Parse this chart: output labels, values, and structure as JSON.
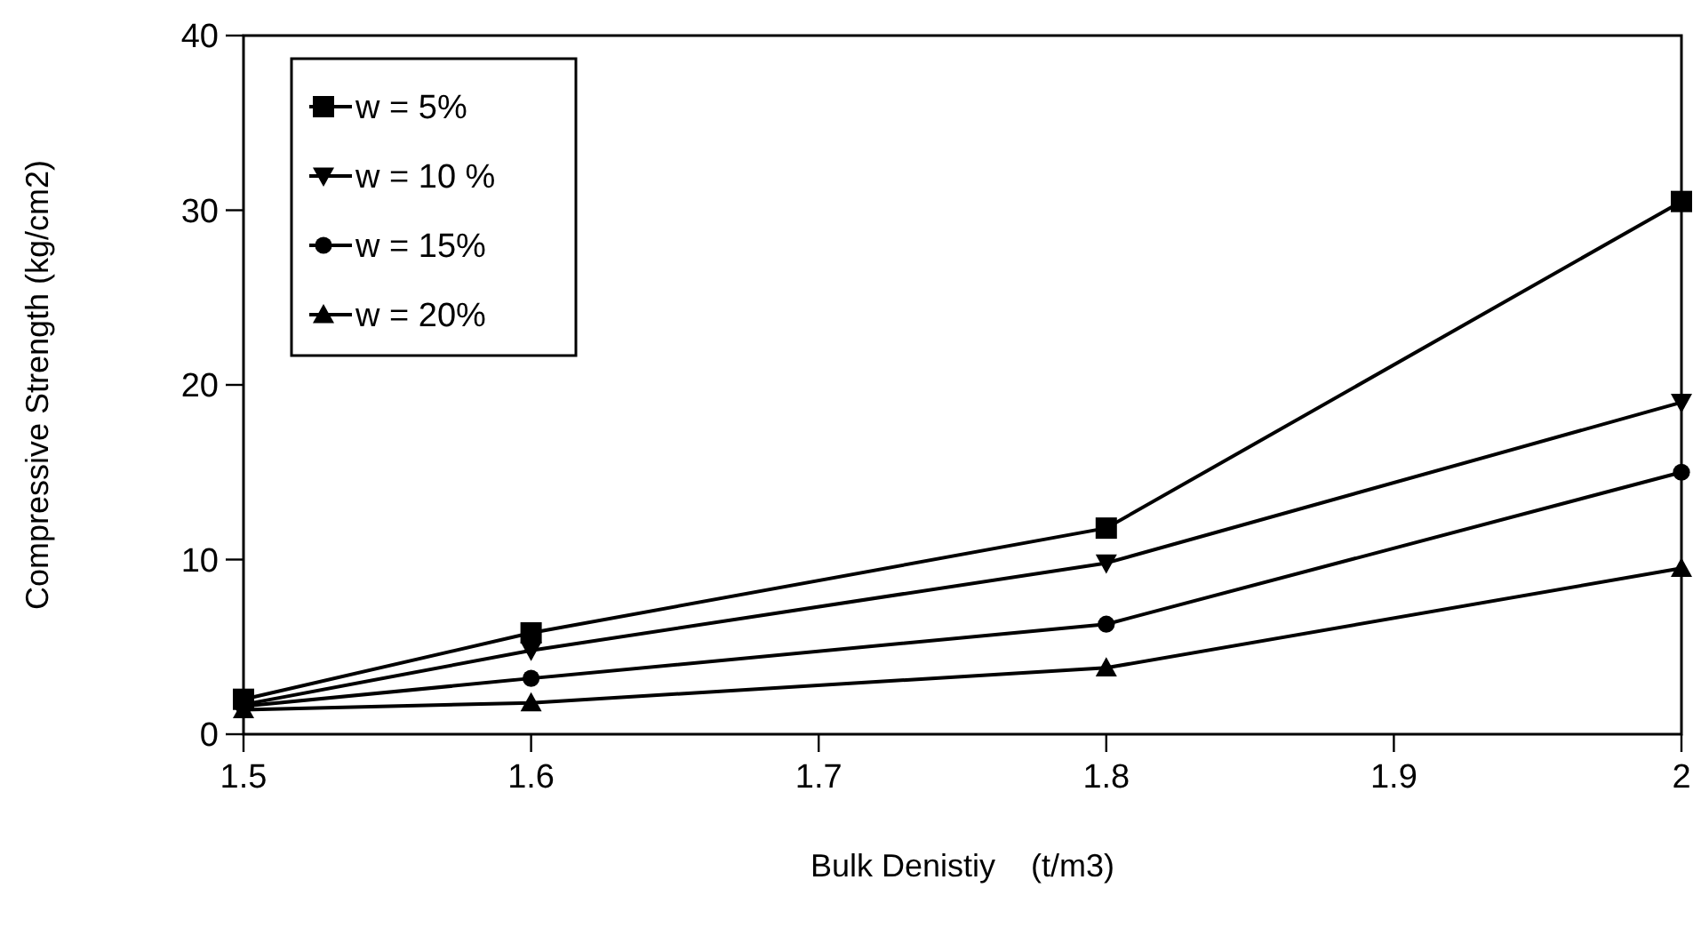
{
  "chart_data": {
    "type": "line",
    "xlabel": "Bulk Denistiy    (t/m3)",
    "ylabel": "Compressive Strength (kg/cm2)",
    "x": [
      1.5,
      1.6,
      1.8,
      2
    ],
    "xlim": [
      1.5,
      2
    ],
    "xticks": [
      1.5,
      1.6,
      1.7,
      1.8,
      1.9,
      2
    ],
    "ylim": [
      0,
      40
    ],
    "yticks": [
      0,
      10,
      20,
      30,
      40
    ],
    "grid": false,
    "legend": "top left",
    "line_style": "solid",
    "series": [
      {
        "name": "w = 5%",
        "color": "#000000",
        "marker": "square",
        "values": [
          2,
          5.8,
          11.8,
          30.5
        ]
      },
      {
        "name": "w = 10 %",
        "color": "#000000",
        "marker": "triangle-down",
        "values": [
          1.7,
          4.8,
          9.8,
          19
        ]
      },
      {
        "name": "w = 15%",
        "color": "#000000",
        "marker": "circle",
        "values": [
          1.6,
          3.2,
          6.3,
          15
        ]
      },
      {
        "name": "w = 20%",
        "color": "#000000",
        "marker": "triangle",
        "values": [
          1.4,
          1.8,
          3.8,
          9.5
        ]
      }
    ]
  }
}
